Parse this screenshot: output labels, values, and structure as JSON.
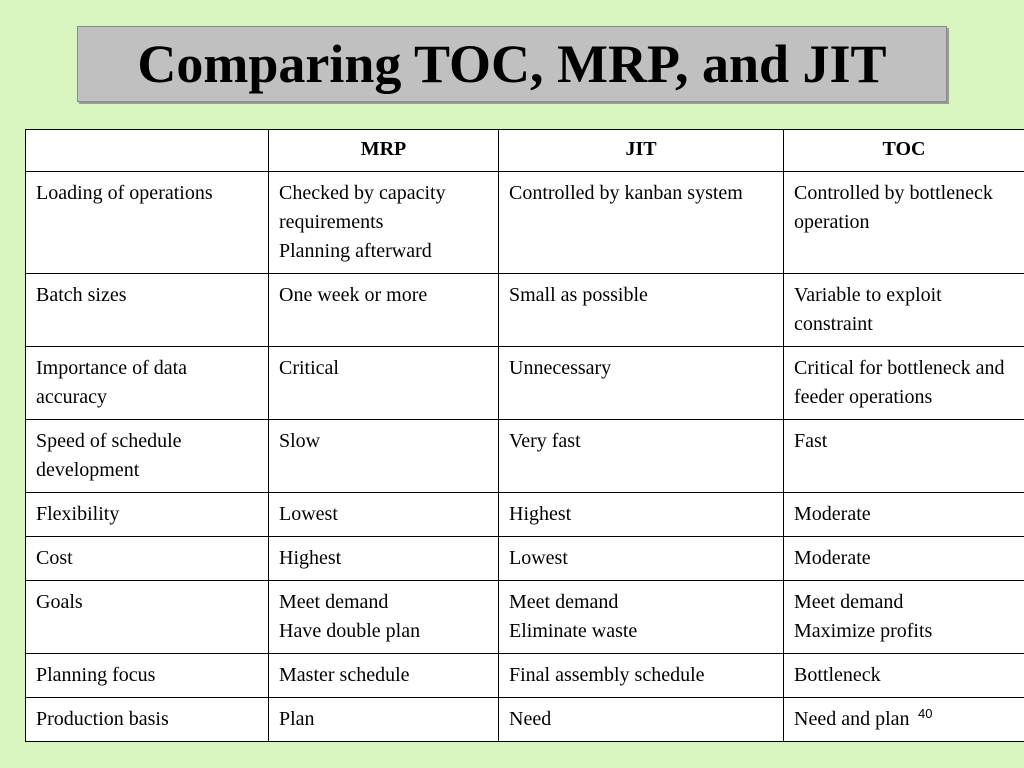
{
  "title": "Comparing TOC, MRP, and JIT",
  "table": {
    "headers": [
      "",
      "MRP",
      "JIT",
      "TOC"
    ],
    "rows": [
      [
        "Loading of operations",
        "Checked by capacity requirements\nPlanning afterward",
        "Controlled by kanban system",
        "Controlled by bottleneck operation"
      ],
      [
        "Batch sizes",
        "One week or more",
        "Small as possible",
        "Variable to exploit constraint"
      ],
      [
        "Importance of data accuracy",
        "Critical",
        "Unnecessary",
        "Critical for bottleneck and feeder operations"
      ],
      [
        "Speed of schedule development",
        "Slow",
        "Very fast",
        "Fast"
      ],
      [
        "Flexibility",
        "Lowest",
        "Highest",
        "Moderate"
      ],
      [
        "Cost",
        "Highest",
        "Lowest",
        "Moderate"
      ],
      [
        "Goals",
        "Meet demand\nHave double plan",
        "Meet demand\nEliminate waste",
        "Meet demand\nMaximize profits"
      ],
      [
        "Planning focus",
        "Master schedule",
        "Final assembly schedule",
        "Bottleneck"
      ],
      [
        "Production basis",
        "Plan",
        "Need",
        "Need and plan"
      ]
    ]
  },
  "page_number": "40"
}
